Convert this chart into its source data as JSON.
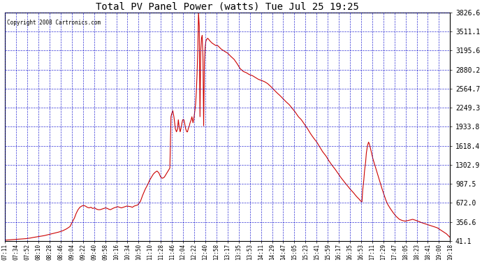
{
  "title": "Total PV Panel Power (watts) Tue Jul 25 19:25",
  "copyright": "Copyright 2008 Cartronics.com",
  "background_color": "#ffffff",
  "plot_bg_color": "#ffffff",
  "grid_color": "#0000cc",
  "line_color": "#cc0000",
  "yticks": [
    41.1,
    356.6,
    672.0,
    987.5,
    1302.9,
    1618.4,
    1933.8,
    2249.3,
    2564.7,
    2880.2,
    3195.6,
    3511.1,
    3826.6
  ],
  "ylim": [
    41.1,
    3826.6
  ],
  "x_labels": [
    "07:11",
    "07:34",
    "07:52",
    "08:10",
    "08:28",
    "08:46",
    "09:04",
    "09:22",
    "09:40",
    "09:58",
    "10:16",
    "10:34",
    "10:50",
    "11:10",
    "11:28",
    "11:46",
    "12:04",
    "12:22",
    "12:40",
    "12:58",
    "13:17",
    "13:35",
    "13:53",
    "14:11",
    "14:29",
    "14:47",
    "15:05",
    "15:23",
    "15:41",
    "15:59",
    "16:17",
    "16:35",
    "16:53",
    "17:11",
    "17:29",
    "17:47",
    "18:05",
    "18:23",
    "18:41",
    "19:00",
    "19:18"
  ],
  "key_points": [
    [
      7.183,
      55
    ],
    [
      7.3,
      60
    ],
    [
      7.4,
      65
    ],
    [
      7.55,
      70
    ],
    [
      7.65,
      75
    ],
    [
      7.75,
      80
    ],
    [
      7.87,
      90
    ],
    [
      7.95,
      100
    ],
    [
      8.05,
      110
    ],
    [
      8.15,
      120
    ],
    [
      8.25,
      130
    ],
    [
      8.35,
      145
    ],
    [
      8.45,
      160
    ],
    [
      8.55,
      175
    ],
    [
      8.65,
      190
    ],
    [
      8.75,
      210
    ],
    [
      8.85,
      240
    ],
    [
      8.95,
      280
    ],
    [
      9.0,
      340
    ],
    [
      9.07,
      420
    ],
    [
      9.12,
      500
    ],
    [
      9.17,
      560
    ],
    [
      9.22,
      600
    ],
    [
      9.27,
      620
    ],
    [
      9.32,
      630
    ],
    [
      9.37,
      620
    ],
    [
      9.42,
      600
    ],
    [
      9.47,
      590
    ],
    [
      9.52,
      600
    ],
    [
      9.57,
      580
    ],
    [
      9.62,
      590
    ],
    [
      9.67,
      570
    ],
    [
      9.72,
      560
    ],
    [
      9.77,
      560
    ],
    [
      9.82,
      570
    ],
    [
      9.87,
      580
    ],
    [
      9.92,
      590
    ],
    [
      9.97,
      580
    ],
    [
      10.0,
      570
    ],
    [
      10.05,
      560
    ],
    [
      10.1,
      575
    ],
    [
      10.15,
      590
    ],
    [
      10.2,
      600
    ],
    [
      10.25,
      610
    ],
    [
      10.3,
      600
    ],
    [
      10.35,
      590
    ],
    [
      10.4,
      600
    ],
    [
      10.45,
      610
    ],
    [
      10.5,
      620
    ],
    [
      10.55,
      615
    ],
    [
      10.6,
      610
    ],
    [
      10.65,
      600
    ],
    [
      10.7,
      620
    ],
    [
      10.75,
      630
    ],
    [
      10.8,
      640
    ],
    [
      10.87,
      700
    ],
    [
      10.93,
      800
    ],
    [
      11.0,
      900
    ],
    [
      11.07,
      980
    ],
    [
      11.12,
      1050
    ],
    [
      11.17,
      1100
    ],
    [
      11.22,
      1150
    ],
    [
      11.27,
      1180
    ],
    [
      11.32,
      1200
    ],
    [
      11.37,
      1170
    ],
    [
      11.42,
      1100
    ],
    [
      11.47,
      1080
    ],
    [
      11.52,
      1100
    ],
    [
      11.57,
      1150
    ],
    [
      11.62,
      1200
    ],
    [
      11.67,
      1250
    ],
    [
      11.7,
      2100
    ],
    [
      11.72,
      2150
    ],
    [
      11.75,
      2200
    ],
    [
      11.78,
      2100
    ],
    [
      11.8,
      2000
    ],
    [
      11.82,
      1900
    ],
    [
      11.85,
      1850
    ],
    [
      11.88,
      1900
    ],
    [
      11.9,
      2050
    ],
    [
      11.92,
      1950
    ],
    [
      11.95,
      1850
    ],
    [
      11.97,
      1900
    ],
    [
      12.0,
      2000
    ],
    [
      12.02,
      2050
    ],
    [
      12.05,
      2050
    ],
    [
      12.07,
      2000
    ],
    [
      12.1,
      1900
    ],
    [
      12.13,
      1850
    ],
    [
      12.15,
      1850
    ],
    [
      12.17,
      1900
    ],
    [
      12.2,
      1950
    ],
    [
      12.22,
      2000
    ],
    [
      12.25,
      2050
    ],
    [
      12.27,
      2100
    ],
    [
      12.3,
      2000
    ],
    [
      12.33,
      2100
    ],
    [
      12.35,
      2200
    ],
    [
      12.37,
      2300
    ],
    [
      12.39,
      2500
    ],
    [
      12.41,
      2800
    ],
    [
      12.43,
      3200
    ],
    [
      12.45,
      3826
    ],
    [
      12.47,
      3600
    ],
    [
      12.49,
      2100
    ],
    [
      12.51,
      3200
    ],
    [
      12.53,
      3400
    ],
    [
      12.55,
      3450
    ],
    [
      12.57,
      3100
    ],
    [
      12.59,
      1950
    ],
    [
      12.61,
      3000
    ],
    [
      12.63,
      3250
    ],
    [
      12.65,
      3350
    ],
    [
      12.67,
      3380
    ],
    [
      12.7,
      3400
    ],
    [
      12.73,
      3380
    ],
    [
      12.77,
      3350
    ],
    [
      12.82,
      3320
    ],
    [
      12.87,
      3300
    ],
    [
      12.92,
      3280
    ],
    [
      12.97,
      3280
    ],
    [
      13.02,
      3250
    ],
    [
      13.07,
      3220
    ],
    [
      13.12,
      3200
    ],
    [
      13.17,
      3180
    ],
    [
      13.25,
      3150
    ],
    [
      13.33,
      3100
    ],
    [
      13.42,
      3050
    ],
    [
      13.5,
      2980
    ],
    [
      13.58,
      2900
    ],
    [
      13.67,
      2850
    ],
    [
      13.75,
      2830
    ],
    [
      13.83,
      2800
    ],
    [
      13.92,
      2780
    ],
    [
      14.0,
      2750
    ],
    [
      14.08,
      2720
    ],
    [
      14.17,
      2700
    ],
    [
      14.25,
      2680
    ],
    [
      14.33,
      2650
    ],
    [
      14.42,
      2600
    ],
    [
      14.5,
      2550
    ],
    [
      14.58,
      2500
    ],
    [
      14.67,
      2450
    ],
    [
      14.75,
      2400
    ],
    [
      14.83,
      2350
    ],
    [
      14.92,
      2300
    ],
    [
      15.0,
      2240
    ],
    [
      15.08,
      2180
    ],
    [
      15.17,
      2100
    ],
    [
      15.25,
      2050
    ],
    [
      15.33,
      1980
    ],
    [
      15.42,
      1900
    ],
    [
      15.5,
      1820
    ],
    [
      15.58,
      1750
    ],
    [
      15.67,
      1680
    ],
    [
      15.75,
      1600
    ],
    [
      15.83,
      1520
    ],
    [
      15.92,
      1450
    ],
    [
      16.0,
      1370
    ],
    [
      16.08,
      1300
    ],
    [
      16.17,
      1230
    ],
    [
      16.25,
      1160
    ],
    [
      16.33,
      1090
    ],
    [
      16.42,
      1020
    ],
    [
      16.5,
      960
    ],
    [
      16.58,
      900
    ],
    [
      16.67,
      840
    ],
    [
      16.75,
      780
    ],
    [
      16.83,
      730
    ],
    [
      16.87,
      700
    ],
    [
      16.9,
      690
    ],
    [
      16.92,
      880
    ],
    [
      16.95,
      1050
    ],
    [
      16.97,
      1200
    ],
    [
      17.0,
      1350
    ],
    [
      17.02,
      1500
    ],
    [
      17.05,
      1620
    ],
    [
      17.08,
      1680
    ],
    [
      17.1,
      1650
    ],
    [
      17.13,
      1580
    ],
    [
      17.17,
      1480
    ],
    [
      17.2,
      1400
    ],
    [
      17.25,
      1300
    ],
    [
      17.3,
      1200
    ],
    [
      17.35,
      1100
    ],
    [
      17.4,
      1000
    ],
    [
      17.45,
      900
    ],
    [
      17.5,
      810
    ],
    [
      17.55,
      720
    ],
    [
      17.6,
      650
    ],
    [
      17.67,
      580
    ],
    [
      17.75,
      510
    ],
    [
      17.83,
      450
    ],
    [
      17.92,
      400
    ],
    [
      18.0,
      380
    ],
    [
      18.08,
      370
    ],
    [
      18.15,
      380
    ],
    [
      18.22,
      390
    ],
    [
      18.28,
      400
    ],
    [
      18.33,
      390
    ],
    [
      18.38,
      380
    ],
    [
      18.42,
      370
    ],
    [
      18.47,
      360
    ],
    [
      18.5,
      350
    ],
    [
      18.55,
      340
    ],
    [
      18.6,
      330
    ],
    [
      18.65,
      320
    ],
    [
      18.7,
      310
    ],
    [
      18.75,
      300
    ],
    [
      18.8,
      290
    ],
    [
      18.85,
      280
    ],
    [
      18.9,
      270
    ],
    [
      18.95,
      260
    ],
    [
      19.0,
      240
    ],
    [
      19.05,
      220
    ],
    [
      19.1,
      200
    ],
    [
      19.15,
      180
    ],
    [
      19.2,
      160
    ],
    [
      19.25,
      130
    ],
    [
      19.3,
      100
    ]
  ]
}
